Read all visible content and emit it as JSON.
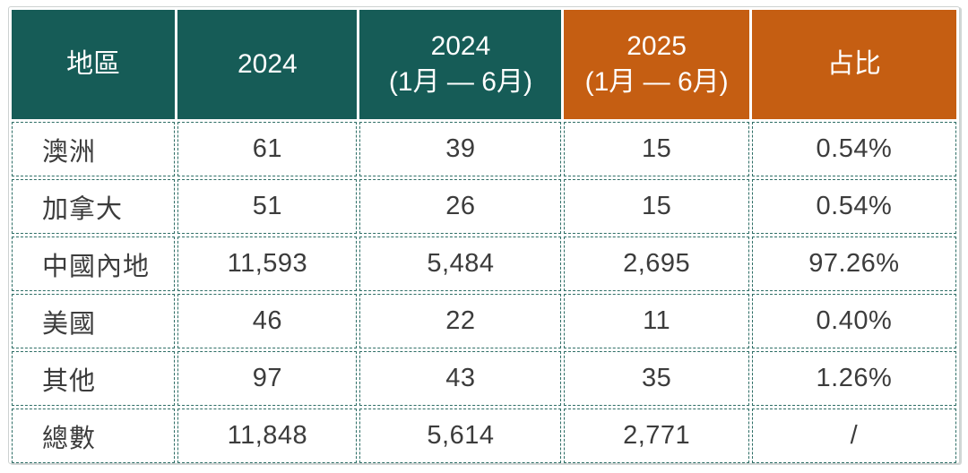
{
  "chart_data": {
    "type": "table",
    "title": "",
    "columns": [
      {
        "line1": "地區",
        "line2": "",
        "theme": "teal"
      },
      {
        "line1": "2024",
        "line2": "",
        "theme": "teal"
      },
      {
        "line1": "2024",
        "line2": "(1月 — 6月)",
        "theme": "teal"
      },
      {
        "line1": "2025",
        "line2": "(1月 — 6月)",
        "theme": "orange"
      },
      {
        "line1": "占比",
        "line2": "",
        "theme": "orange"
      }
    ],
    "rows": [
      [
        "澳洲",
        "61",
        "39",
        "15",
        "0.54%"
      ],
      [
        "加拿大",
        "51",
        "26",
        "15",
        "0.54%"
      ],
      [
        "中國內地",
        "11,593",
        "5,484",
        "2,695",
        "97.26%"
      ],
      [
        "美國",
        "46",
        "22",
        "11",
        "0.40%"
      ],
      [
        "其他",
        "97",
        "43",
        "35",
        "1.26%"
      ],
      [
        "總數",
        "11,848",
        "5,614",
        "2,771",
        "/"
      ]
    ]
  },
  "colors": {
    "header_teal": "#165C57",
    "header_orange": "#C55E12",
    "dashed_border": "#2E6E66",
    "cell_text": "#3C3C3C"
  }
}
